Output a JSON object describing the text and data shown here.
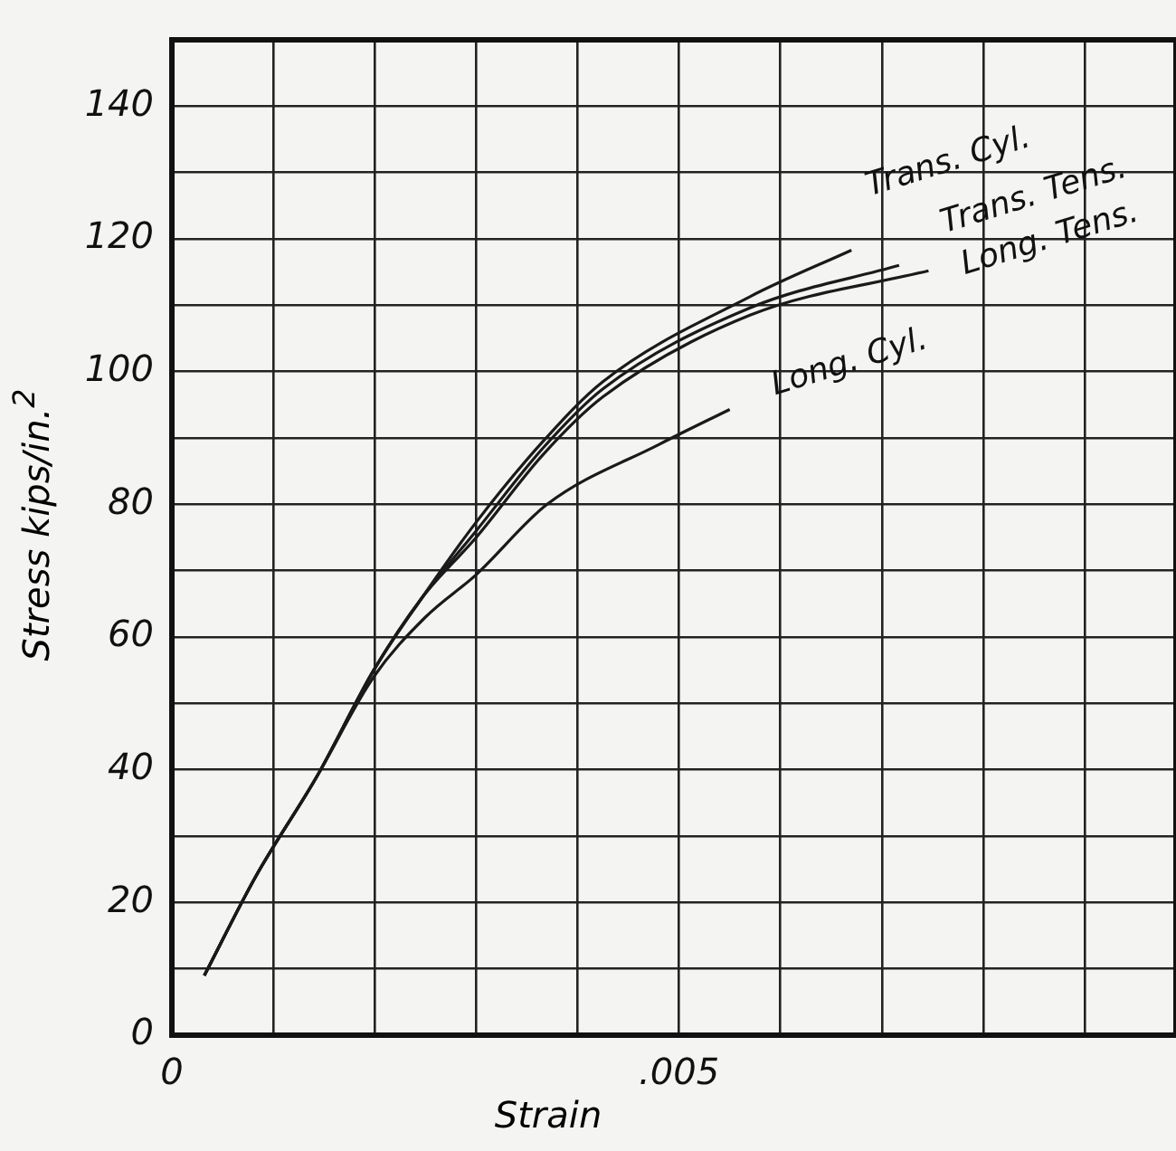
{
  "chart_data": {
    "type": "line",
    "xlabel": "Strain",
    "ylabel": "Stress  kips/in.$^{2}$",
    "xlim": [
      0,
      0.0099
    ],
    "ylim": [
      0,
      150
    ],
    "xticks": [
      0,
      {
        "value": 0.001,
        "label": null
      },
      {
        "value": 0.002,
        "label": null
      },
      {
        "value": 0.003,
        "label": null
      },
      {
        "value": 0.004,
        "label": null
      },
      {
        "value": 0.005,
        "label": ".005"
      },
      {
        "value": 0.006,
        "label": null
      },
      {
        "value": 0.007,
        "label": null
      },
      {
        "value": 0.008,
        "label": null
      },
      {
        "value": 0.009,
        "label": null
      }
    ],
    "yticks": [
      0,
      {
        "value": 10,
        "label": null
      },
      20,
      {
        "value": 30,
        "label": null
      },
      40,
      {
        "value": 50,
        "label": null
      },
      60,
      {
        "value": 70,
        "label": null
      },
      80,
      {
        "value": 90,
        "label": null
      },
      100,
      {
        "value": 110,
        "label": null
      },
      120,
      {
        "value": 130,
        "label": null
      },
      140
    ],
    "grid": true,
    "legend": false,
    "marker": "none",
    "line_style": "solid",
    "series": [
      {
        "name": "Trans. Cyl.",
        "color": "#1a1a1a",
        "x": [
          0.00032,
          0.00083,
          0.00143,
          0.00199,
          0.00247,
          0.003,
          0.00366,
          0.00425,
          0.0057,
          0.0067
        ],
        "values": [
          9,
          24,
          39,
          55,
          66,
          77.3,
          89.5,
          98.5,
          111.3,
          118.3
        ]
      },
      {
        "name": "Trans. Tens.",
        "color": "#1a1a1a",
        "x": [
          0.00032,
          0.00083,
          0.00143,
          0.00199,
          0.00247,
          0.003,
          0.00366,
          0.00425,
          0.0057,
          0.00717
        ],
        "values": [
          9,
          24,
          39,
          55,
          66,
          76,
          88.5,
          97.4,
          109.6,
          116
        ]
      },
      {
        "name": "Long. Tens.",
        "color": "#1a1a1a",
        "x": [
          0.00032,
          0.00083,
          0.00143,
          0.00199,
          0.00247,
          0.003,
          0.00366,
          0.00425,
          0.0057,
          0.00746
        ],
        "values": [
          9,
          24,
          39,
          55,
          66,
          75,
          87.5,
          96.2,
          108.5,
          115.2
        ]
      },
      {
        "name": "Long. Cyl.",
        "color": "#1a1a1a",
        "x": [
          0.00032,
          0.00083,
          0.00143,
          0.00199,
          0.0025,
          0.003,
          0.0037,
          0.0048,
          0.0055
        ],
        "values": [
          9,
          24,
          39,
          54,
          63,
          69.4,
          80,
          89,
          94.3
        ]
      }
    ]
  }
}
